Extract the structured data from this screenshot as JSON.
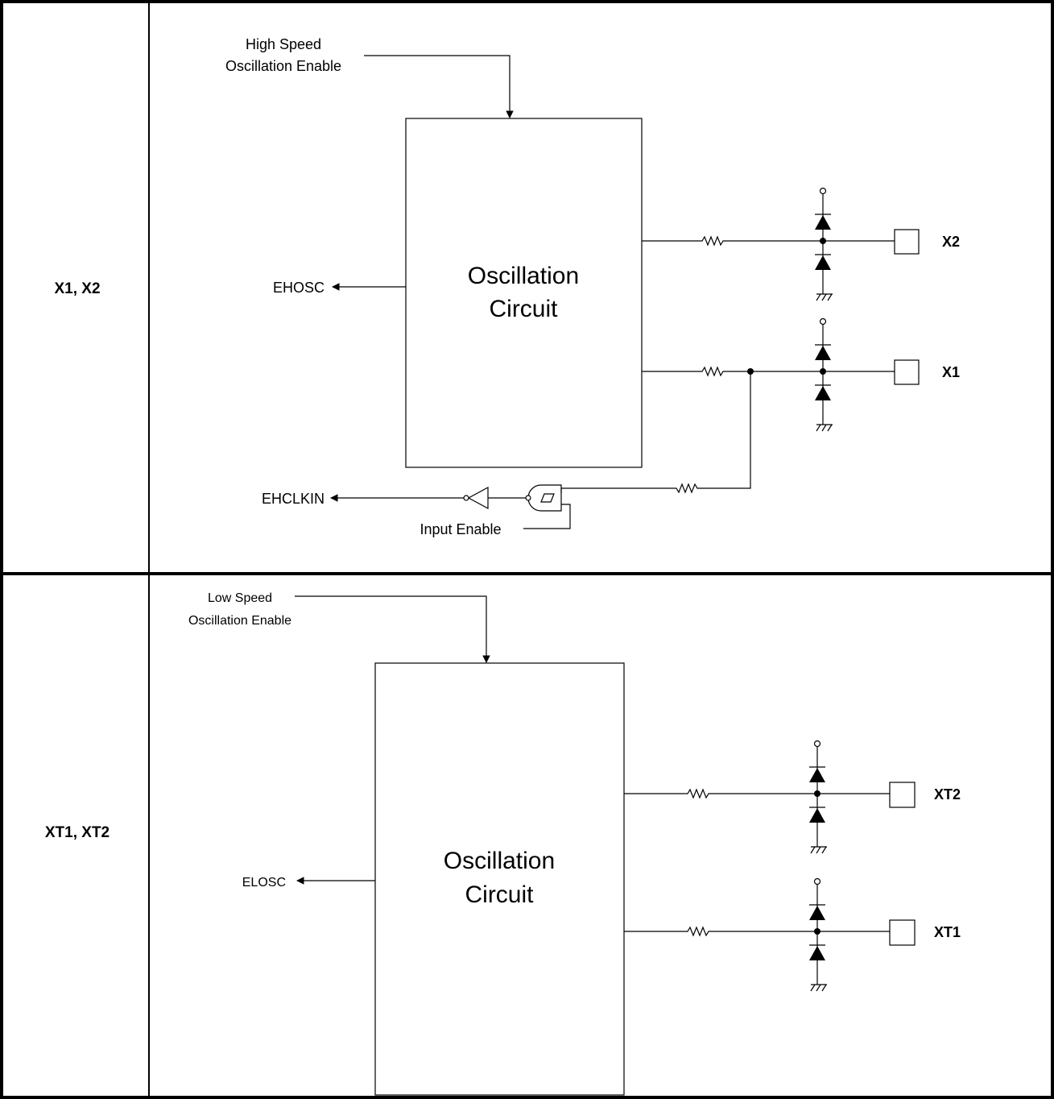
{
  "table": {
    "rows": [
      {
        "pins": "X1, X2",
        "enable_label_line1": "High Speed",
        "enable_label_line2": "Oscillation Enable",
        "circuit_line1": "Oscillation",
        "circuit_line2": "Circuit",
        "output_signal": "EHOSC",
        "clock_in_signal": "EHCLKIN",
        "input_enable_label": "Input Enable",
        "pin_upper": "X2",
        "pin_lower": "X1"
      },
      {
        "pins": "XT1, XT2",
        "enable_label_line1": "Low Speed",
        "enable_label_line2": "Oscillation Enable",
        "circuit_line1": "Oscillation",
        "circuit_line2": "Circuit",
        "output_signal": "ELOSC",
        "pin_upper": "XT2",
        "pin_lower": "XT1"
      }
    ]
  }
}
